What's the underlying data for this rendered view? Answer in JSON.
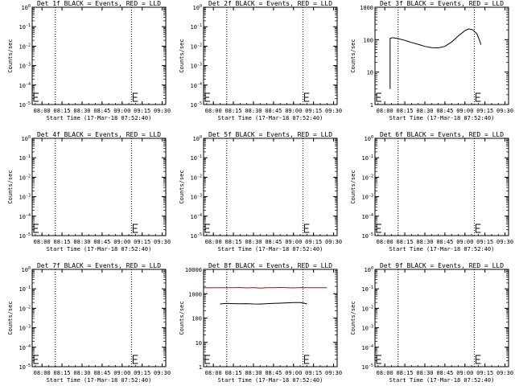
{
  "chart_data": [
    {
      "type": "line",
      "title": "Det 1f BLACK = Events, RED = LLD",
      "xlabel": "Start Time (17-Mar-18 07:52:40)",
      "ylabel": "Counts/sec",
      "x_ticks": [
        "08:00",
        "08:15",
        "08:30",
        "08:45",
        "09:00",
        "09:15",
        "09:30"
      ],
      "y_scale": "log",
      "y_ticks": [
        "10^0",
        "10^-1",
        "10^-2",
        "10^-3",
        "10^-4",
        "10^-5"
      ],
      "xlim": [
        "07:52:40",
        "09:32:40"
      ],
      "ylim": [
        1,
        100000
      ],
      "vlines": [
        "08:10",
        "09:07"
      ],
      "series": []
    },
    {
      "type": "line",
      "title": "Det 2f BLACK = Events, RED = LLD",
      "xlabel": "Start Time (17-Mar-18 07:52:40)",
      "ylabel": "Counts/sec",
      "x_ticks": [
        "08:00",
        "08:15",
        "08:30",
        "08:45",
        "09:00",
        "09:15",
        "09:30"
      ],
      "y_scale": "log",
      "y_ticks": [
        "10^0",
        "10^-1",
        "10^-2",
        "10^-3",
        "10^-4",
        "10^-5"
      ],
      "xlim": [
        "07:52:40",
        "09:32:40"
      ],
      "ylim": [
        1,
        100000
      ],
      "vlines": [
        "08:10",
        "09:07"
      ],
      "series": []
    },
    {
      "type": "line",
      "title": "Det 3f BLACK = Events, RED = LLD",
      "xlabel": "Start Time (17-Mar-18 07:52:40)",
      "ylabel": "Counts/sec",
      "x_ticks": [
        "08:00",
        "08:15",
        "08:30",
        "08:45",
        "09:00",
        "09:15",
        "09:30"
      ],
      "y_scale": "log",
      "y_ticks": [
        "1000",
        "100",
        "10",
        "1"
      ],
      "xlim": [
        "07:52:40",
        "09:32:40"
      ],
      "ylim": [
        1,
        1000
      ],
      "vlines": [
        "08:10",
        "09:07"
      ],
      "series": [
        {
          "color": "#000000",
          "points": [
            [
              "08:04",
              3
            ],
            [
              "08:04",
              110
            ],
            [
              "08:06",
              115
            ],
            [
              "08:10",
              108
            ],
            [
              "08:15",
              95
            ],
            [
              "08:20",
              82
            ],
            [
              "08:25",
              72
            ],
            [
              "08:30",
              62
            ],
            [
              "08:35",
              57
            ],
            [
              "08:40",
              56
            ],
            [
              "08:45",
              62
            ],
            [
              "08:50",
              85
            ],
            [
              "08:55",
              130
            ],
            [
              "09:00",
              190
            ],
            [
              "09:03",
              215
            ],
            [
              "09:06",
              200
            ],
            [
              "09:09",
              150
            ],
            [
              "09:11",
              95
            ],
            [
              "09:12",
              70
            ]
          ]
        }
      ]
    },
    {
      "type": "line",
      "title": "Det 4f BLACK = Events, RED = LLD",
      "xlabel": "Start Time (17-Mar-18 07:52:40)",
      "ylabel": "Counts/sec",
      "x_ticks": [
        "08:00",
        "08:15",
        "08:30",
        "08:45",
        "09:00",
        "09:15",
        "09:30"
      ],
      "y_scale": "log",
      "y_ticks": [
        "10^0",
        "10^-1",
        "10^-2",
        "10^-3",
        "10^-4",
        "10^-5"
      ],
      "xlim": [
        "07:52:40",
        "09:32:40"
      ],
      "ylim": [
        1,
        100000
      ],
      "vlines": [
        "08:10",
        "09:07"
      ],
      "series": []
    },
    {
      "type": "line",
      "title": "Det 5f BLACK = Events, RED = LLD",
      "xlabel": "Start Time (17-Mar-18 07:52:40)",
      "ylabel": "Counts/sec",
      "x_ticks": [
        "08:00",
        "08:15",
        "08:30",
        "08:45",
        "09:00",
        "09:15",
        "09:30"
      ],
      "y_scale": "log",
      "y_ticks": [
        "10^0",
        "10^-1",
        "10^-2",
        "10^-3",
        "10^-4",
        "10^-5"
      ],
      "xlim": [
        "07:52:40",
        "09:32:40"
      ],
      "ylim": [
        1,
        100000
      ],
      "vlines": [
        "08:10",
        "09:07"
      ],
      "series": []
    },
    {
      "type": "line",
      "title": "Det 6f BLACK = Events, RED = LLD",
      "xlabel": "Start Time (17-Mar-18 07:52:40)",
      "ylabel": "Counts/sec",
      "x_ticks": [
        "08:00",
        "08:15",
        "08:30",
        "08:45",
        "09:00",
        "09:15",
        "09:30"
      ],
      "y_scale": "log",
      "y_ticks": [
        "10^0",
        "10^-1",
        "10^-2",
        "10^-3",
        "10^-4",
        "10^-5"
      ],
      "xlim": [
        "07:52:40",
        "09:32:40"
      ],
      "ylim": [
        1,
        100000
      ],
      "vlines": [
        "08:10",
        "09:07"
      ],
      "series": []
    },
    {
      "type": "line",
      "title": "Det 7f BLACK = Events, RED = LLD",
      "xlabel": "Start Time (17-Mar-18 07:52:40)",
      "ylabel": "Counts/sec",
      "x_ticks": [
        "08:00",
        "08:15",
        "08:30",
        "08:45",
        "09:00",
        "09:15",
        "09:30"
      ],
      "y_scale": "log",
      "y_ticks": [
        "10^0",
        "10^-1",
        "10^-2",
        "10^-3",
        "10^-4",
        "10^-5"
      ],
      "xlim": [
        "07:52:40",
        "09:32:40"
      ],
      "ylim": [
        1,
        100000
      ],
      "vlines": [
        "08:10",
        "09:07"
      ],
      "series": []
    },
    {
      "type": "line",
      "title": "Det 8f BLACK = Events, RED = LLD",
      "xlabel": "Start Time (17-Mar-18 07:52:40)",
      "ylabel": "Counts/sec",
      "x_ticks": [
        "08:00",
        "08:15",
        "08:30",
        "08:45",
        "09:00",
        "09:15",
        "09:30"
      ],
      "y_scale": "log",
      "y_ticks": [
        "10000",
        "1000",
        "100",
        "10",
        "1"
      ],
      "xlim": [
        "07:52:40",
        "09:32:40"
      ],
      "ylim": [
        1,
        10000
      ],
      "vlines": [
        "08:10",
        "09:07"
      ],
      "series": [
        {
          "color": "#cc0000",
          "points": [
            [
              "07:53",
              1750
            ],
            [
              "08:05",
              1780
            ],
            [
              "08:15",
              1760
            ],
            [
              "08:20",
              1800
            ],
            [
              "08:25",
              1740
            ],
            [
              "08:30",
              1790
            ],
            [
              "08:35",
              1700
            ],
            [
              "08:40",
              1780
            ],
            [
              "08:45",
              1760
            ],
            [
              "08:50",
              1800
            ],
            [
              "08:55",
              1770
            ],
            [
              "09:00",
              1740
            ],
            [
              "09:05",
              1790
            ],
            [
              "09:10",
              1760
            ],
            [
              "09:20",
              1780
            ],
            [
              "09:25",
              1770
            ]
          ]
        },
        {
          "color": "#000000",
          "points": [
            [
              "08:05",
              380
            ],
            [
              "08:10",
              400
            ],
            [
              "08:15",
              390
            ],
            [
              "08:20",
              385
            ],
            [
              "08:25",
              390
            ],
            [
              "08:30",
              380
            ],
            [
              "08:35",
              375
            ],
            [
              "08:40",
              390
            ],
            [
              "08:45",
              400
            ],
            [
              "08:50",
              410
            ],
            [
              "08:55",
              420
            ],
            [
              "09:00",
              430
            ],
            [
              "09:05",
              430
            ],
            [
              "09:08",
              410
            ],
            [
              "09:10",
              380
            ]
          ]
        }
      ]
    },
    {
      "type": "line",
      "title": "Det 9f BLACK = Events, RED = LLD",
      "xlabel": "Start Time (17-Mar-18 07:52:40)",
      "ylabel": "Counts/sec",
      "x_ticks": [
        "08:00",
        "08:15",
        "08:30",
        "08:45",
        "09:00",
        "09:15",
        "09:30"
      ],
      "y_scale": "log",
      "y_ticks": [
        "10^0",
        "10^-1",
        "10^-2",
        "10^-3",
        "10^-4",
        "10^-5"
      ],
      "xlim": [
        "07:52:40",
        "09:32:40"
      ],
      "ylim": [
        1,
        100000
      ],
      "vlines": [
        "08:10",
        "09:07"
      ],
      "series": []
    }
  ]
}
